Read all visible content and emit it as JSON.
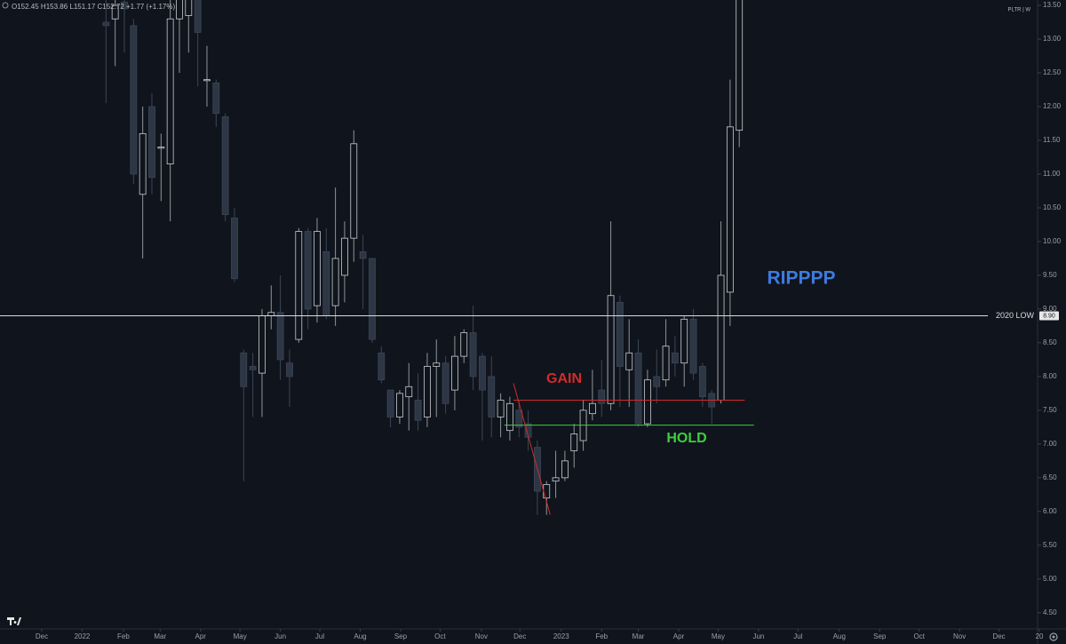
{
  "chart_data": {
    "type": "candlestick",
    "legend_text": "O152.45 H153.86 L151.17 C152.72 +1.77 (+1.17%)",
    "symbol_label": "PLTR | W",
    "up_color": "#c9ccd1",
    "down_color": "#2c3645",
    "xlim": [
      -4.55,
      111.6
    ],
    "xticks": [
      {
        "value": 0,
        "label": "Dec"
      },
      {
        "value": 4.4,
        "label": "2022"
      },
      {
        "value": 8.9,
        "label": "Feb"
      },
      {
        "value": 12.9,
        "label": "Mar"
      },
      {
        "value": 17.3,
        "label": "Apr"
      },
      {
        "value": 21.6,
        "label": "May"
      },
      {
        "value": 26.0,
        "label": "Jun"
      },
      {
        "value": 30.3,
        "label": "Jul"
      },
      {
        "value": 34.7,
        "label": "Aug"
      },
      {
        "value": 39.1,
        "label": "Sep"
      },
      {
        "value": 43.4,
        "label": "Oct"
      },
      {
        "value": 47.9,
        "label": "Nov"
      },
      {
        "value": 52.1,
        "label": "Dec"
      },
      {
        "value": 56.6,
        "label": "2023"
      },
      {
        "value": 61.0,
        "label": "Feb"
      },
      {
        "value": 65.0,
        "label": "Mar"
      },
      {
        "value": 69.4,
        "label": "Apr"
      },
      {
        "value": 73.7,
        "label": "May"
      },
      {
        "value": 78.1,
        "label": "Jun"
      },
      {
        "value": 82.4,
        "label": "Jul"
      },
      {
        "value": 86.9,
        "label": "Aug"
      },
      {
        "value": 91.3,
        "label": "Sep"
      },
      {
        "value": 95.6,
        "label": "Oct"
      },
      {
        "value": 100.0,
        "label": "Nov"
      },
      {
        "value": 104.3,
        "label": "Dec"
      },
      {
        "value": 108.7,
        "label": "20"
      }
    ],
    "ylim": [
      4.26,
      13.58
    ],
    "yticks": [
      {
        "value": 4.5,
        "label": "4.50"
      },
      {
        "value": 5,
        "label": "5.00"
      },
      {
        "value": 5.5,
        "label": "5.50"
      },
      {
        "value": 6,
        "label": "6.00"
      },
      {
        "value": 6.5,
        "label": "6.50"
      },
      {
        "value": 7,
        "label": "7.00"
      },
      {
        "value": 7.5,
        "label": "7.50"
      },
      {
        "value": 8,
        "label": "8.00"
      },
      {
        "value": 8.5,
        "label": "8.50"
      },
      {
        "value": 9,
        "label": "9.00"
      },
      {
        "value": 9.5,
        "label": "9.50"
      },
      {
        "value": 10,
        "label": "10.00"
      },
      {
        "value": 10.5,
        "label": "10.50"
      },
      {
        "value": 11,
        "label": "11.00"
      },
      {
        "value": 11.5,
        "label": "11.50"
      },
      {
        "value": 12,
        "label": "12.00"
      },
      {
        "value": 12.5,
        "label": "12.50"
      },
      {
        "value": 13,
        "label": "13.00"
      },
      {
        "value": 13.5,
        "label": "13.50"
      }
    ],
    "x": [
      7,
      8,
      9,
      10,
      11,
      12,
      13,
      14,
      15,
      16,
      17,
      18,
      19,
      20,
      21,
      22,
      23,
      24,
      25,
      26,
      27,
      28,
      29,
      30,
      31,
      32,
      33,
      34,
      35,
      36,
      37,
      38,
      39,
      40,
      41,
      42,
      43,
      44,
      45,
      46,
      47,
      48,
      49,
      50,
      51,
      52,
      53,
      54,
      55,
      56,
      57,
      58,
      59,
      60,
      61,
      62,
      63,
      64,
      65,
      66,
      67,
      68,
      69,
      70,
      71,
      72,
      73,
      74,
      75,
      76
    ],
    "open": [
      13.25,
      13.3,
      13.55,
      13.2,
      10.7,
      12.0,
      11.4,
      11.15,
      13.3,
      13.35,
      13.6,
      12.4,
      12.35,
      11.85,
      10.35,
      8.35,
      8.15,
      8.05,
      8.9,
      8.95,
      8.2,
      8.55,
      10.15,
      9.05,
      9.85,
      9.05,
      9.5,
      10.05,
      9.85,
      9.75,
      8.35,
      7.8,
      7.4,
      7.7,
      7.65,
      7.4,
      8.15,
      8.2,
      7.8,
      8.3,
      8.65,
      8.3,
      8.0,
      7.4,
      7.2,
      7.5,
      7.3,
      6.95,
      6.2,
      6.45,
      6.5,
      6.9,
      7.05,
      7.45,
      7.8,
      7.6,
      9.1,
      8.1,
      8.35,
      7.3,
      8.0,
      7.95,
      8.35,
      8.2,
      8.85,
      8.15,
      7.75,
      7.65,
      9.25,
      11.65
    ],
    "high": [
      13.6,
      13.6,
      13.6,
      13.3,
      12.0,
      12.2,
      11.6,
      13.6,
      13.6,
      13.6,
      13.6,
      12.9,
      12.4,
      11.9,
      10.5,
      8.4,
      8.35,
      9.0,
      9.35,
      9.5,
      8.4,
      10.2,
      10.2,
      10.35,
      10.2,
      10.8,
      10.3,
      11.65,
      10.1,
      9.75,
      8.45,
      7.8,
      7.8,
      8.2,
      8.05,
      8.35,
      8.55,
      8.3,
      8.6,
      8.7,
      9.05,
      8.35,
      8.3,
      7.75,
      7.7,
      7.65,
      7.5,
      7.05,
      6.45,
      6.9,
      6.9,
      7.3,
      7.65,
      8.1,
      8.25,
      10.3,
      9.2,
      8.85,
      8.55,
      8.1,
      8.4,
      8.85,
      8.6,
      8.9,
      9.0,
      8.2,
      7.8,
      10.3,
      12.4,
      13.6
    ],
    "low": [
      12.05,
      12.6,
      12.8,
      10.85,
      9.75,
      10.7,
      10.6,
      10.3,
      12.5,
      12.8,
      12.3,
      12.0,
      11.7,
      10.3,
      9.4,
      6.45,
      7.4,
      7.4,
      8.7,
      7.95,
      7.55,
      8.5,
      8.7,
      8.8,
      8.85,
      8.75,
      9.1,
      9.7,
      9.0,
      8.5,
      7.9,
      7.25,
      7.3,
      7.2,
      7.2,
      7.25,
      7.4,
      7.45,
      7.5,
      8.2,
      7.8,
      7.05,
      7.1,
      7.1,
      7.05,
      7.1,
      6.9,
      5.95,
      5.95,
      6.2,
      6.45,
      6.65,
      6.9,
      7.35,
      7.4,
      7.5,
      7.55,
      7.55,
      7.25,
      7.25,
      7.6,
      7.85,
      8.0,
      7.85,
      7.95,
      7.55,
      7.3,
      7.6,
      8.75,
      11.4
    ],
    "close": [
      13.2,
      13.5,
      13.45,
      11.0,
      11.6,
      10.95,
      11.4,
      13.3,
      13.6,
      13.6,
      13.1,
      12.4,
      11.9,
      10.4,
      9.45,
      7.85,
      8.1,
      8.9,
      8.95,
      8.25,
      8.0,
      10.15,
      9.0,
      10.15,
      8.9,
      9.75,
      10.05,
      11.45,
      9.75,
      8.55,
      7.95,
      7.4,
      7.75,
      7.85,
      7.35,
      8.15,
      8.2,
      7.6,
      8.3,
      8.65,
      8.0,
      7.8,
      7.4,
      7.65,
      7.6,
      7.25,
      7.1,
      6.3,
      6.4,
      6.5,
      6.75,
      7.15,
      7.5,
      7.6,
      7.6,
      9.2,
      8.15,
      8.35,
      7.3,
      7.95,
      7.85,
      8.45,
      8.2,
      8.85,
      8.05,
      7.7,
      7.55,
      9.5,
      11.7,
      13.6
    ],
    "horizontal_lines": [
      {
        "label": "2020 LOW",
        "value": 8.9,
        "value_label": "8.90",
        "color": "#d9dce0"
      }
    ],
    "segments": [
      {
        "label": "GAIN",
        "color": "#d42a2a",
        "x": [
          51.4,
          76.6
        ],
        "y": [
          7.65,
          7.65
        ]
      },
      {
        "label": "HOLD",
        "color": "#3ecf3e",
        "x": [
          50.4,
          77.6
        ],
        "y": [
          7.28,
          7.28
        ]
      },
      {
        "color": "#d42a2a",
        "x": [
          51.4,
          55.4
        ],
        "y": [
          7.9,
          5.95
        ]
      }
    ],
    "text_annotations": [
      {
        "text": "RIPPPP",
        "color": "#3d7be0"
      }
    ]
  }
}
